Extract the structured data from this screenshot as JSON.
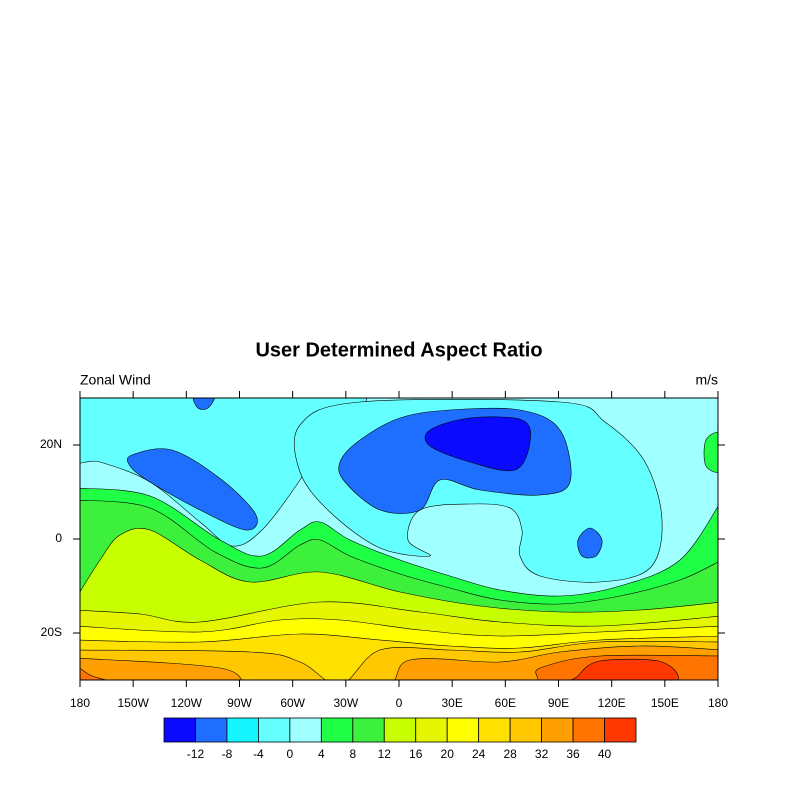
{
  "chart_data": {
    "type": "contour-map",
    "title": "User Determined Aspect Ratio",
    "left_string": "Zonal Wind",
    "right_string": "m/s",
    "xlim": [
      -180,
      180
    ],
    "xticks": [
      {
        "value": -180,
        "label": "180"
      },
      {
        "value": -150,
        "label": "150W"
      },
      {
        "value": -120,
        "label": "120W"
      },
      {
        "value": -90,
        "label": "90W"
      },
      {
        "value": -60,
        "label": "60W"
      },
      {
        "value": -30,
        "label": "30W"
      },
      0,
      {
        "value": 30,
        "label": "30E"
      },
      {
        "value": 60,
        "label": "60E"
      },
      {
        "value": 90,
        "label": "90E"
      },
      {
        "value": 120,
        "label": "120E"
      },
      {
        "value": 150,
        "label": "150E"
      },
      180
    ],
    "ylim": [
      -30,
      30
    ],
    "yticks": [
      {
        "value": 20,
        "label": "20N"
      },
      0,
      {
        "value": -20,
        "label": "20S"
      }
    ],
    "colorbar": {
      "levels": [
        -12,
        -8,
        -4,
        0,
        4,
        8,
        12,
        16,
        20,
        24,
        28,
        32,
        36,
        40
      ],
      "colors": [
        "#0a0aff",
        "#1e6eff",
        "#14f5ff",
        "#64ffff",
        "#a0ffff",
        "#1eff46",
        "#3cf03c",
        "#c8ff00",
        "#e6f500",
        "#ffff00",
        "#ffe100",
        "#ffc800",
        "#ffa000",
        "#ff7300",
        "#ff3700"
      ]
    }
  }
}
